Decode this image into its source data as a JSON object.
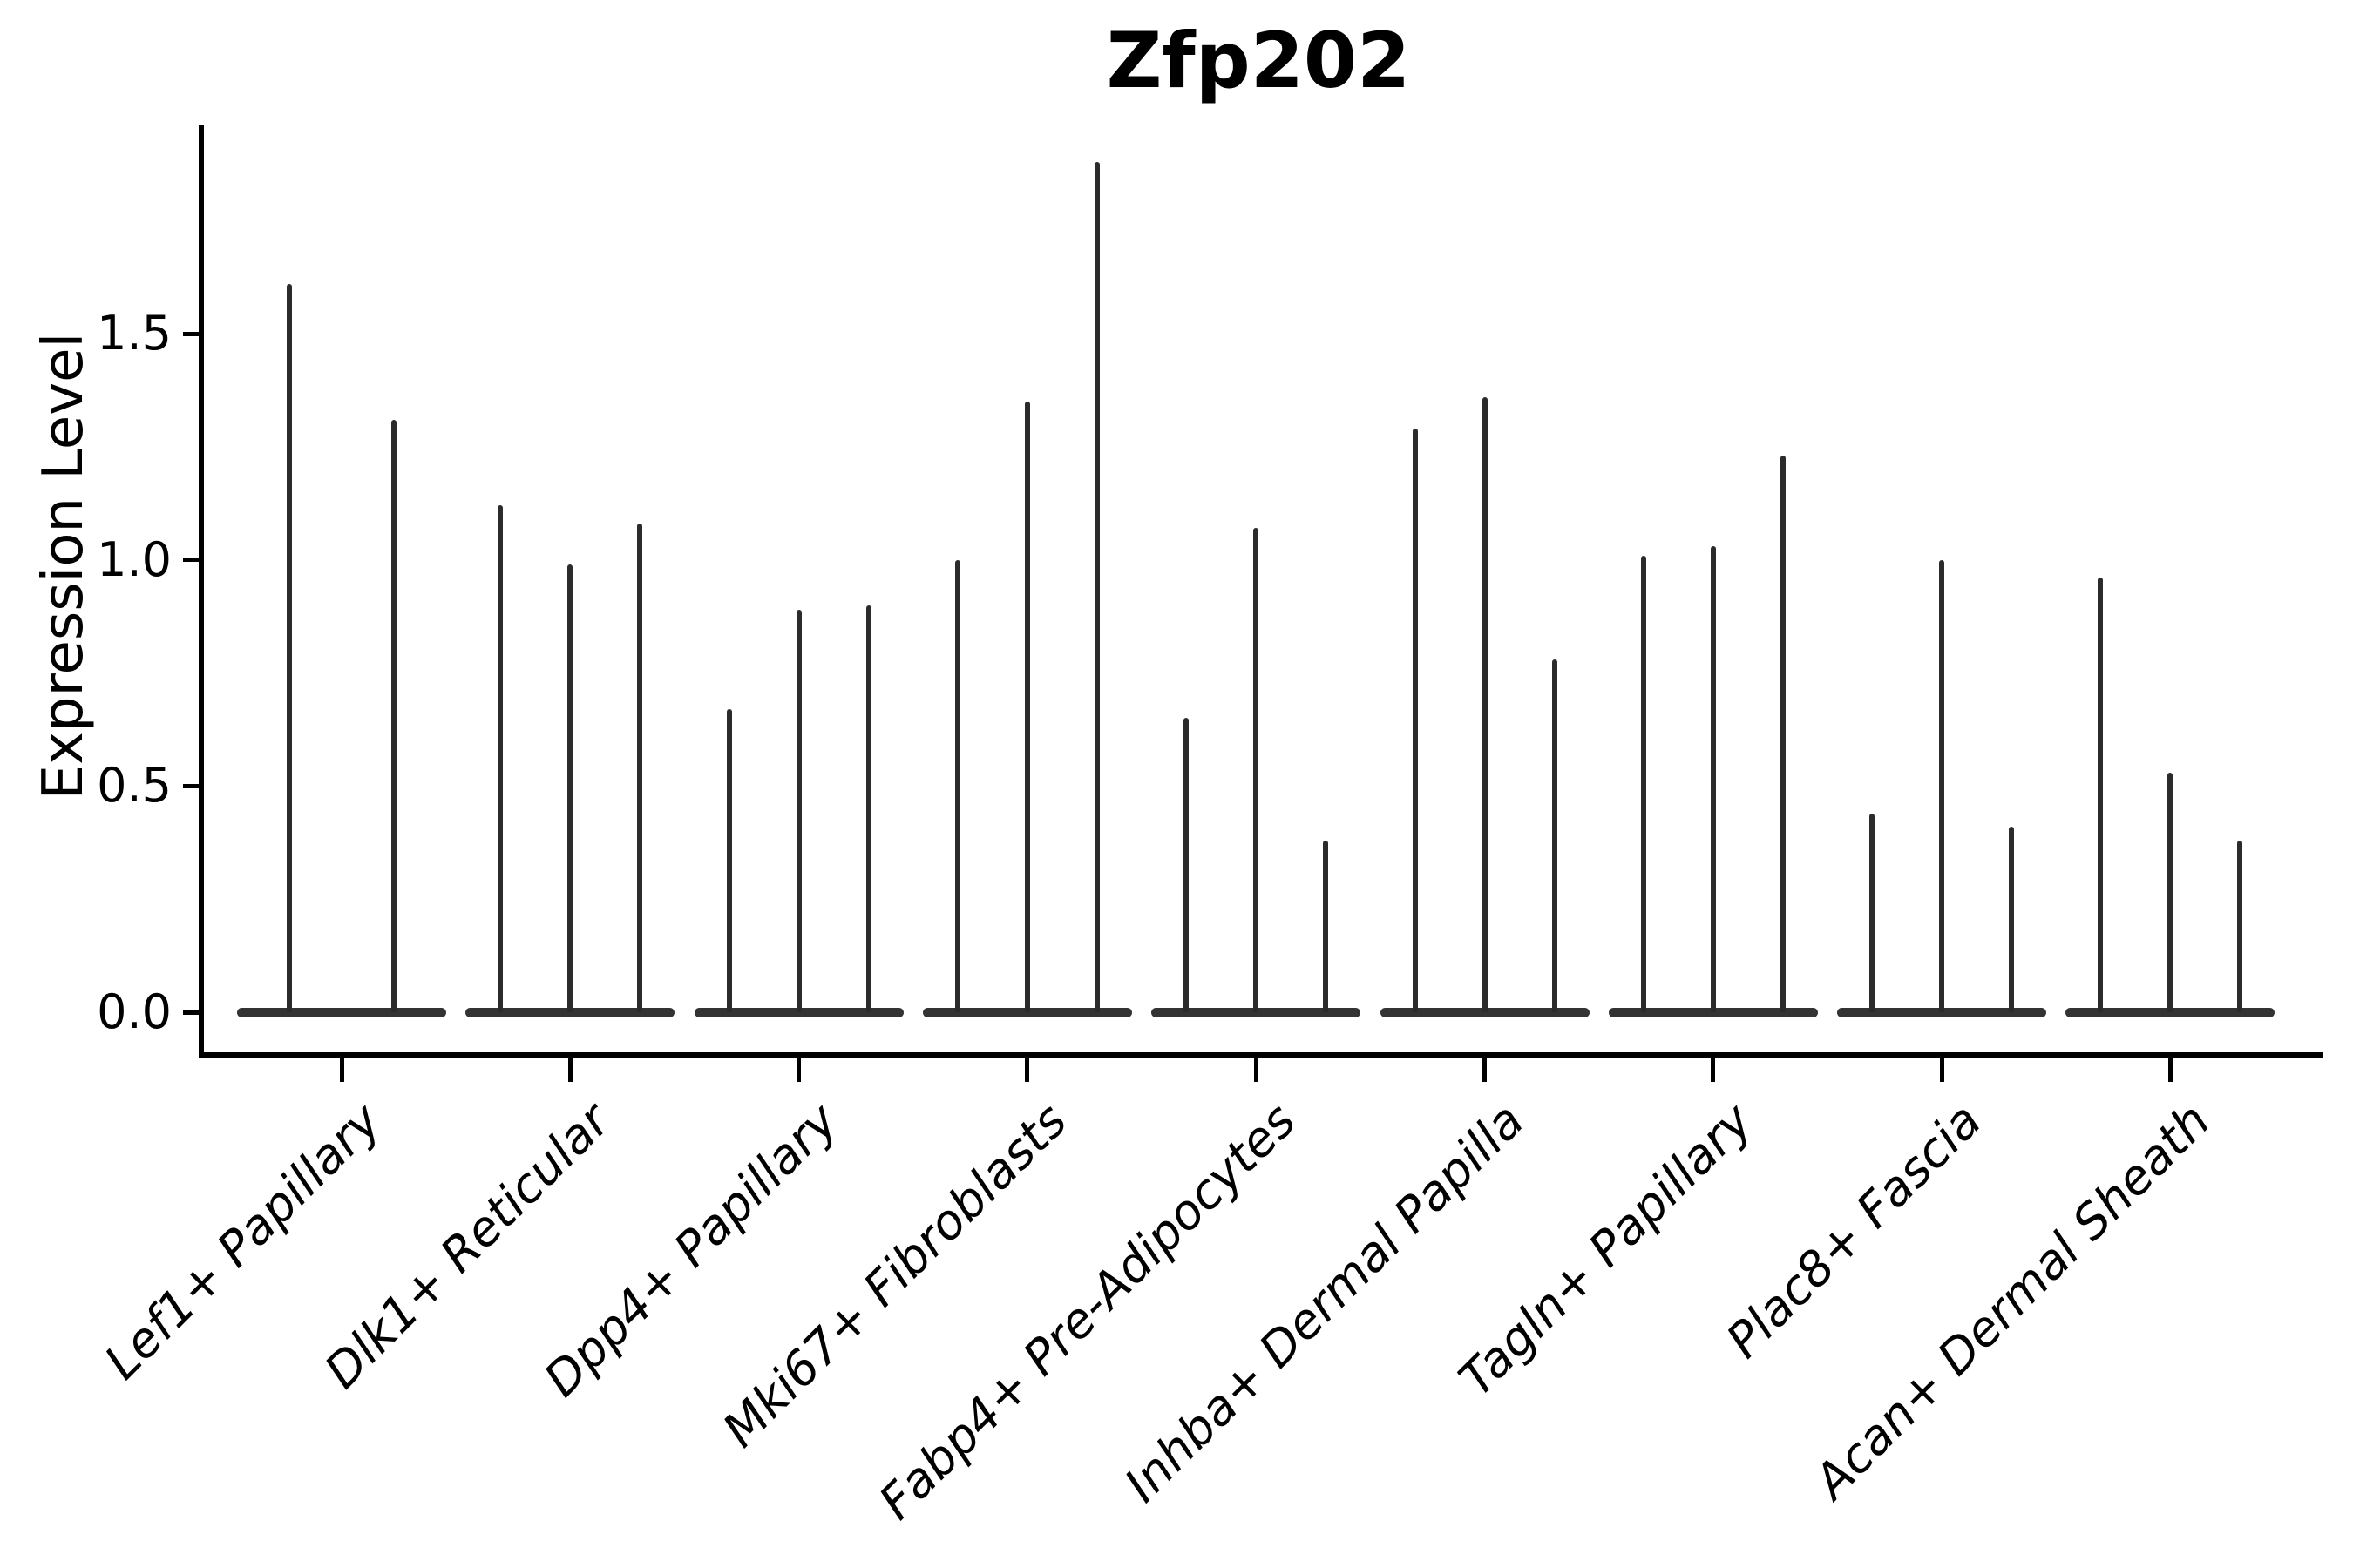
{
  "title": "Zfp202",
  "chart_data": {
    "type": "violin",
    "title": "Zfp202",
    "xlabel": "",
    "ylabel": "Expression Level",
    "ytick_labels": [
      "0.0",
      "0.5",
      "1.0",
      "1.5"
    ],
    "yticks": [
      0.0,
      0.5,
      1.0,
      1.5
    ],
    "ylim": [
      -0.09,
      1.98
    ],
    "grid": false,
    "legend_position": "none",
    "background": "#ffffff",
    "style_note": "mostly-zero single-cell expression violins: each category shows a flat dark base at 0 with 2-3 needle-thin spikes; only left and bottom spines; x tick labels italic rotated 45 degrees",
    "colors": {
      "violin": "#2b2b2b",
      "violin_base": "#333333",
      "axis": "#000000",
      "text": "#000000"
    },
    "categories": [
      "Lef1+ Papillary",
      "Dlk1+ Reticular",
      "Dpp4+ Papillary",
      "Mki67+ Fibroblasts",
      "Fabp4+ Pre-Adipocytes",
      "Inhba+ Dermal Papilla",
      "Tagln+ Papillary",
      "Plac8+ Fascia",
      "Acan+ Dermal Sheath"
    ],
    "groups": [
      {
        "label": "Lef1+ Papillary",
        "violin_peaks": [
          1.61,
          1.31
        ]
      },
      {
        "label": "Dlk1+ Reticular",
        "violin_peaks": [
          1.12,
          0.99,
          1.08
        ]
      },
      {
        "label": "Dpp4+ Papillary",
        "violin_peaks": [
          0.67,
          0.89,
          0.9
        ]
      },
      {
        "label": "Mki67+ Fibroblasts",
        "violin_peaks": [
          1.0,
          1.35,
          1.88
        ]
      },
      {
        "label": "Fabp4+ Pre-Adipocytes",
        "violin_peaks": [
          0.65,
          1.07,
          0.38
        ]
      },
      {
        "label": "Inhba+ Dermal Papilla",
        "violin_peaks": [
          1.29,
          1.36,
          0.78
        ]
      },
      {
        "label": "Tagln+ Papillary",
        "violin_peaks": [
          1.01,
          1.03,
          1.23
        ]
      },
      {
        "label": "Plac8+ Fascia",
        "violin_peaks": [
          0.44,
          1.0,
          0.41
        ]
      },
      {
        "label": "Acan+ Dermal Sheath",
        "violin_peaks": [
          0.96,
          0.53,
          0.38
        ]
      }
    ]
  }
}
